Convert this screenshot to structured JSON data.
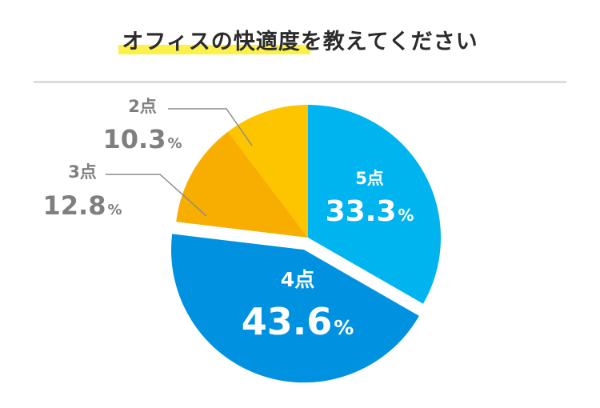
{
  "chart_data": {
    "type": "pie",
    "title": "オフィスの快適度を教えてください",
    "slices": [
      {
        "label": "5点",
        "value": 33.3,
        "display": "33.3",
        "color": "#00b5ef"
      },
      {
        "label": "4点",
        "value": 43.6,
        "display": "43.6",
        "color": "#0092e0"
      },
      {
        "label": "3点",
        "value": 12.8,
        "display": "12.8",
        "color": "#f8ae00"
      },
      {
        "label": "2点",
        "value": 10.3,
        "display": "10.3",
        "color": "#fdc400"
      }
    ],
    "percent_sign": "%",
    "outside_text_color": "#7f7f7f",
    "inside_text_color": "#ffffff",
    "leader_line_color": "#8c8c8c"
  }
}
